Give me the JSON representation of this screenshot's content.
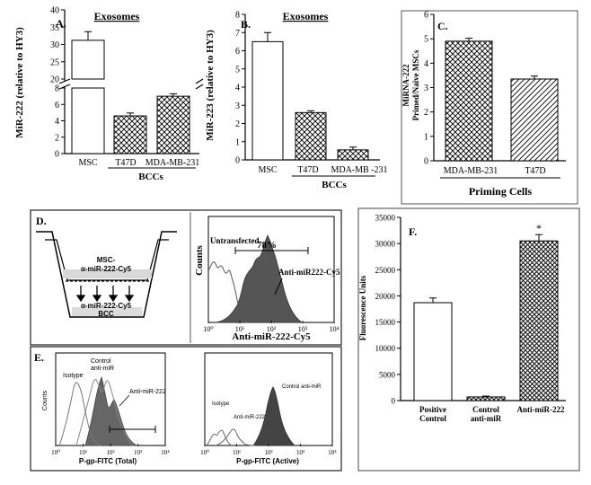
{
  "chart_data": [
    {
      "id": "A",
      "type": "bar",
      "panel_label": "A.",
      "title": "Exosomes",
      "ylabel": "MiR-222 (relative to HY3)",
      "broken_axis": true,
      "upper_ylim": [
        20,
        40
      ],
      "upper_ticks": [
        "20",
        "25",
        "30",
        "35",
        "40"
      ],
      "lower_ylim": [
        0,
        8
      ],
      "lower_ticks": [
        "0",
        "2",
        "4",
        "6",
        "8"
      ],
      "categories": [
        "MSC",
        "T47D",
        "MDA-MB-231"
      ],
      "values": [
        31.2,
        4.6,
        7.0
      ],
      "errors": [
        2.5,
        0.35,
        0.3
      ],
      "patterns": [
        "plain",
        "cross",
        "cross"
      ],
      "group_label": "BCCs"
    },
    {
      "id": "B",
      "type": "bar",
      "panel_label": "B.",
      "title": "Exosomes",
      "ylabel": "MiR-223 (relative to HY3)",
      "ylim": [
        0,
        8
      ],
      "ticks": [
        "0",
        "1",
        "2",
        "3",
        "4",
        "5",
        "6",
        "7",
        "8"
      ],
      "categories": [
        "MSC",
        "T47D",
        "MDA-MB -231"
      ],
      "values": [
        6.5,
        2.6,
        0.55
      ],
      "errors": [
        0.5,
        0.1,
        0.15
      ],
      "patterns": [
        "plain",
        "cross",
        "cross"
      ],
      "group_label": "BCCs"
    },
    {
      "id": "C",
      "type": "bar",
      "panel_label": "C.",
      "ylabel_line1": "MiRNA-222",
      "ylabel_line2": "Primed/Naïve MSCs",
      "ylim": [
        0,
        6
      ],
      "ticks": [
        "0",
        "1",
        "2",
        "3",
        "4",
        "5",
        "6"
      ],
      "categories": [
        "MDA-MB-231",
        "T47D"
      ],
      "values": [
        4.9,
        3.35
      ],
      "errors": [
        0.12,
        0.12
      ],
      "patterns": [
        "cross",
        "diag"
      ],
      "group_label": "Priming Cells"
    },
    {
      "id": "F",
      "type": "bar",
      "panel_label": "F.",
      "ylabel": "Fluorescence Units",
      "ylim": [
        0,
        35000
      ],
      "ticks": [
        "0",
        "5000",
        "10000",
        "15000",
        "20000",
        "25000",
        "30000",
        "35000"
      ],
      "categories_line1": [
        "Positive",
        "Control",
        "Anti-miR-222"
      ],
      "categories_line2": [
        "Control",
        "anti-miR",
        ""
      ],
      "values": [
        18700,
        700,
        30500
      ],
      "errors": [
        900,
        150,
        1200
      ],
      "patterns": [
        "plain",
        "cross",
        "cross"
      ],
      "significance": "*"
    },
    {
      "id": "D",
      "type": "histogram",
      "panel_label": "D.",
      "diagram_top_label": "MSC-",
      "diagram_mid_label": "α-miR-222-Cy5",
      "diagram_bottom_label_1": "α-miR-222-Cy5",
      "diagram_bottom_label_2": "BCC",
      "ylabel": "Counts",
      "xlabel": "Anti-miR-222-Cy5",
      "x_ticks": [
        "10⁰",
        "10¹",
        "10²",
        "10³",
        "10⁴"
      ],
      "gate_percent": "78%",
      "series_labels": [
        "Untransfected",
        "Anti-miR222-Cy5"
      ]
    },
    {
      "id": "E",
      "type": "histogram",
      "panel_label": "E.",
      "left": {
        "ylabel": "Counts",
        "xlabel": "P-gp-FITC (Total)",
        "x_ticks": [
          "10⁰",
          "10¹",
          "10²",
          "10³",
          "10⁴"
        ],
        "series_labels": [
          "Isotype",
          "Control anti-miR",
          "Anti-miR-222"
        ],
        "control_line1": "Control",
        "control_line2": "anti-miR"
      },
      "right": {
        "xlabel": "P-gp-FITC (Active)",
        "x_ticks": [
          "10⁰",
          "10¹",
          "10²",
          "10³",
          "10⁴"
        ],
        "series_labels": [
          "Isotype",
          "Anti-miR-222",
          "Control anti-miR"
        ]
      }
    }
  ]
}
